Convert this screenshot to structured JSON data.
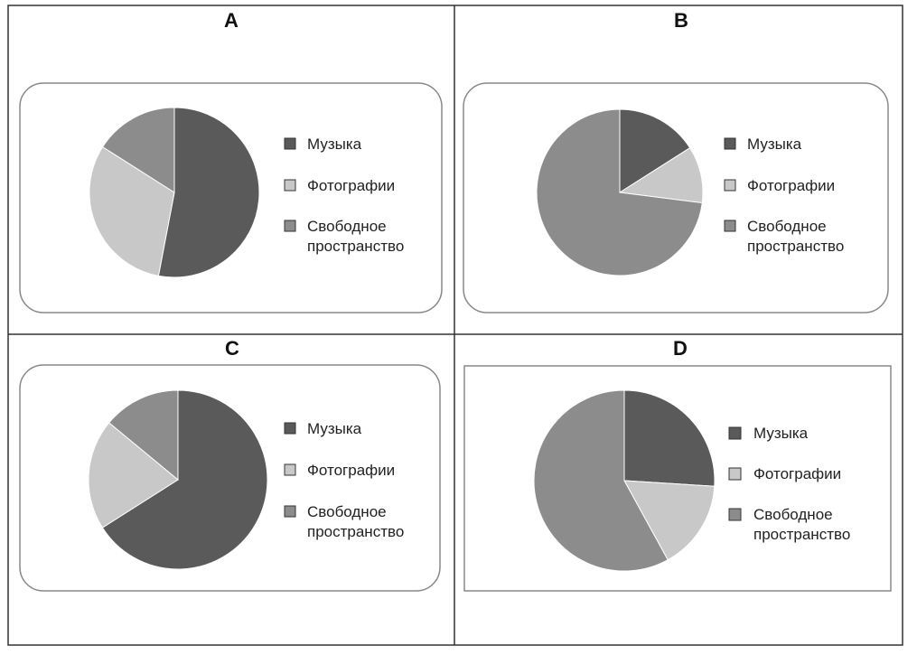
{
  "colors": {
    "music": "#5a5a5a",
    "photos": "#c8c8c8",
    "free": "#8c8c8c",
    "border": "#333333"
  },
  "chart_data": [
    {
      "type": "pie",
      "title": "A",
      "categories": [
        "Музыка",
        "Фотографии",
        "Свободное пространство"
      ],
      "values": [
        53,
        31,
        16
      ],
      "legend_position": "right"
    },
    {
      "type": "pie",
      "title": "B",
      "categories": [
        "Музыка",
        "Фотографии",
        "Свободное пространство"
      ],
      "values": [
        16,
        11,
        73
      ],
      "legend_position": "right"
    },
    {
      "type": "pie",
      "title": "C",
      "categories": [
        "Музыка",
        "Фотографии",
        "Свободное пространство"
      ],
      "values": [
        66,
        20,
        14
      ],
      "legend_position": "right"
    },
    {
      "type": "pie",
      "title": "D",
      "categories": [
        "Музыка",
        "Фотографии",
        "Свободное пространство"
      ],
      "values": [
        26,
        16,
        58
      ],
      "legend_position": "right"
    }
  ]
}
